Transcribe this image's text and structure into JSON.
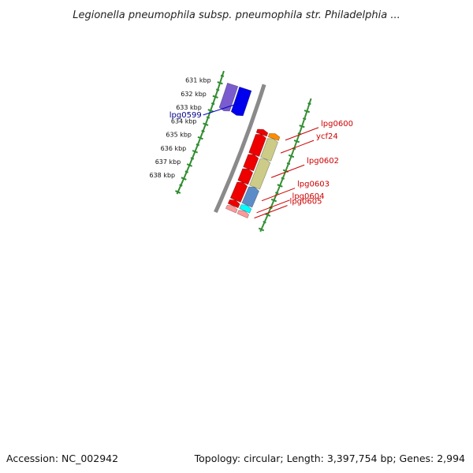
{
  "title": "Legionella pneumophila subsp. pneumophila str. Philadelphia ...",
  "footer": {
    "accession": "Accession: NC_002942",
    "summary": "Topology: circular; Length: 3,397,754 bp; Genes: 2,994"
  },
  "ticks": [
    {
      "label": "631 kbp",
      "kbp": 631
    },
    {
      "label": "632 kbp",
      "kbp": 632
    },
    {
      "label": "633 kbp",
      "kbp": 633
    },
    {
      "label": "634 kbp",
      "kbp": 634
    },
    {
      "label": "635 kbp",
      "kbp": 635
    },
    {
      "label": "636 kbp",
      "kbp": 636
    },
    {
      "label": "637 kbp",
      "kbp": 637
    },
    {
      "label": "638 kbp",
      "kbp": 638
    }
  ],
  "genes": [
    {
      "name": "lpg0599",
      "strand": "forward",
      "color": "#0000ee",
      "label_color": "#00008b",
      "start_kbp": 630.85,
      "end_kbp": 632.72
    },
    {
      "name": "lpg0600",
      "strand": "reverse",
      "color": "#ff8c00",
      "label_color": "#cc0000",
      "start_kbp": 633.0,
      "end_kbp": 633.35
    },
    {
      "name": "ycf24",
      "strand": "reverse",
      "color": "#cccc88",
      "label_color": "#cc0000",
      "start_kbp": 633.35,
      "end_kbp": 634.75
    },
    {
      "name": "lpg0602",
      "strand": "reverse",
      "color": "#cccc88",
      "label_color": "#cc0000",
      "start_kbp": 634.75,
      "end_kbp": 636.7
    },
    {
      "name": "lpg0603",
      "strand": "reverse",
      "color": "#5c8dc8",
      "label_color": "#cc0000",
      "start_kbp": 636.7,
      "end_kbp": 637.95
    },
    {
      "name": "lpg0604",
      "strand": "reverse",
      "color": "#00ffff",
      "label_color": "#cc0000",
      "start_kbp": 637.95,
      "end_kbp": 638.35
    },
    {
      "name": "lpg0605",
      "strand": "reverse",
      "color": "#ff9999",
      "label_color": "#cc0000",
      "start_kbp": 638.35,
      "end_kbp": 638.7
    }
  ],
  "cds_segments": [
    {
      "strand": "forward",
      "color": "#7a5ccf",
      "start_kbp": 630.85,
      "end_kbp": 632.72
    },
    {
      "strand": "reverse",
      "color": "#ee0000",
      "start_kbp": 633.0,
      "end_kbp": 633.35
    },
    {
      "strand": "reverse",
      "color": "#ee0000",
      "start_kbp": 633.35,
      "end_kbp": 634.75
    },
    {
      "strand": "reverse",
      "color": "#ee0000",
      "start_kbp": 634.75,
      "end_kbp": 635.75
    },
    {
      "strand": "reverse",
      "color": "#ee0000",
      "start_kbp": 635.75,
      "end_kbp": 636.7
    },
    {
      "strand": "reverse",
      "color": "#ee0000",
      "start_kbp": 636.7,
      "end_kbp": 637.95
    },
    {
      "strand": "reverse",
      "color": "#ee0000",
      "start_kbp": 637.95,
      "end_kbp": 638.35
    },
    {
      "strand": "reverse",
      "color": "#ff9999",
      "start_kbp": 638.35,
      "end_kbp": 638.7
    }
  ],
  "colors": {
    "backbone": "#8a8a8a",
    "ticks": "#2e8b2e",
    "label_line_forward": "#0000cc",
    "label_line_reverse": "#cc0000"
  }
}
